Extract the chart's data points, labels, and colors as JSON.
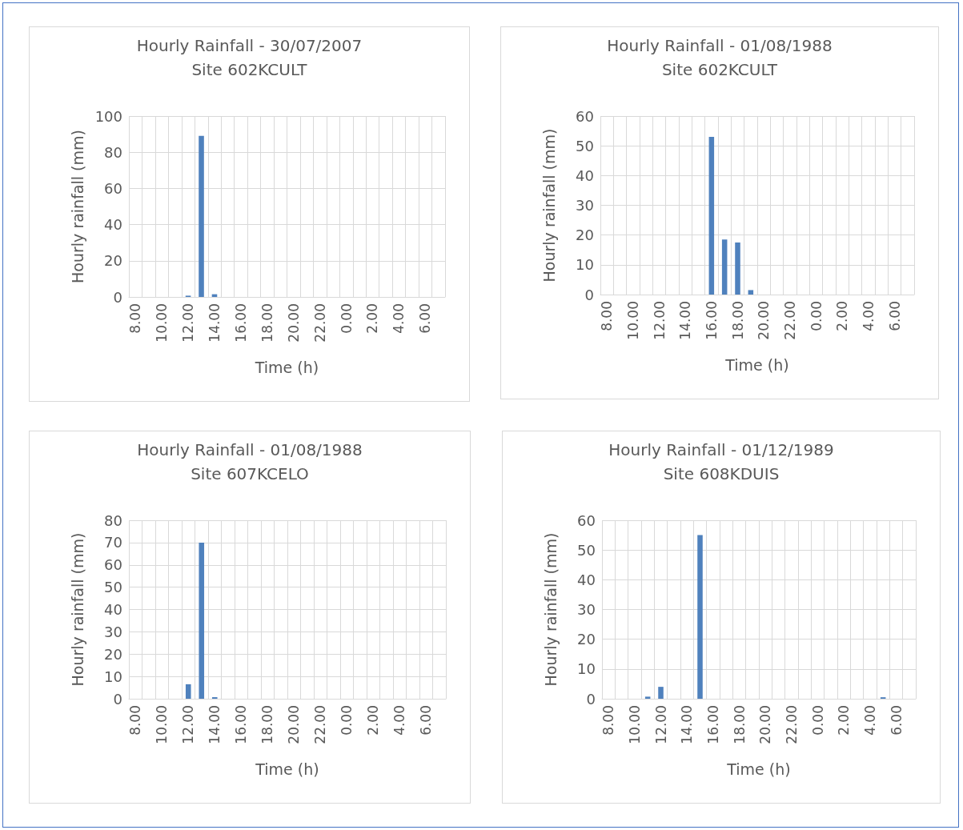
{
  "chart_data": [
    {
      "type": "bar",
      "title": "Hourly Rainfall - 30/07/2007",
      "subtitle": "Site 602KCULT",
      "xlabel": "Time (h)",
      "ylabel": "Hourly rainfall (mm)",
      "categories": [
        "8.00",
        null,
        "10.00",
        null,
        "12.00",
        null,
        "14.00",
        null,
        "16.00",
        null,
        "18.00",
        null,
        "20.00",
        null,
        "22.00",
        null,
        "0.00",
        null,
        "2.00",
        null,
        "4.00",
        null,
        "6.00",
        null
      ],
      "values": [
        0,
        0,
        0,
        0,
        0.7,
        89,
        1.5,
        0,
        0,
        0,
        0,
        0,
        0,
        0,
        0,
        0,
        0,
        0,
        0,
        0,
        0,
        0,
        0,
        0
      ],
      "color": "#4f81bd",
      "ylim": [
        0,
        100
      ],
      "yticks": [
        0,
        20,
        40,
        60,
        80,
        100
      ],
      "grid": true
    },
    {
      "type": "bar",
      "title": "Hourly Rainfall - 01/08/1988",
      "subtitle": "Site 602KCULT",
      "xlabel": "Time (h)",
      "ylabel": "Hourly rainfall (mm)",
      "categories": [
        "8.00",
        null,
        "10.00",
        null,
        "12.00",
        null,
        "14.00",
        null,
        "16.00",
        null,
        "18.00",
        null,
        "20.00",
        null,
        "22.00",
        null,
        "0.00",
        null,
        "2.00",
        null,
        "4.00",
        null,
        "6.00",
        null
      ],
      "values": [
        0,
        0,
        0,
        0,
        0,
        0,
        0,
        0,
        53,
        18.5,
        17.5,
        1.5,
        0,
        0,
        0,
        0,
        0,
        0,
        0,
        0,
        0,
        0,
        0,
        0
      ],
      "color": "#4f81bd",
      "ylim": [
        0,
        60
      ],
      "yticks": [
        0,
        10,
        20,
        30,
        40,
        50,
        60
      ],
      "grid": true
    },
    {
      "type": "bar",
      "title": "Hourly Rainfall - 01/08/1988",
      "subtitle": "Site 607KCELO",
      "xlabel": "Time (h)",
      "ylabel": "Hourly rainfall (mm)",
      "categories": [
        "8.00",
        null,
        "10.00",
        null,
        "12.00",
        null,
        "14.00",
        null,
        "16.00",
        null,
        "18.00",
        null,
        "20.00",
        null,
        "22.00",
        null,
        "0.00",
        null,
        "2.00",
        null,
        "4.00",
        null,
        "6.00",
        null
      ],
      "values": [
        0,
        0,
        0,
        0,
        6.5,
        70,
        0.7,
        0,
        0,
        0,
        0,
        0,
        0,
        0,
        0,
        0,
        0,
        0,
        0,
        0,
        0,
        0,
        0,
        0
      ],
      "color": "#4f81bd",
      "ylim": [
        0,
        80
      ],
      "yticks": [
        0,
        10,
        20,
        30,
        40,
        50,
        60,
        70,
        80
      ],
      "grid": true
    },
    {
      "type": "bar",
      "title": "Hourly Rainfall - 01/12/1989",
      "subtitle": "Site 608KDUIS",
      "xlabel": "Time (h)",
      "ylabel": "Hourly rainfall (mm)",
      "categories": [
        "8.00",
        null,
        "10.00",
        null,
        "12.00",
        null,
        "14.00",
        null,
        "16.00",
        null,
        "18.00",
        null,
        "20.00",
        null,
        "22.00",
        null,
        "0.00",
        null,
        "2.00",
        null,
        "4.00",
        null,
        "6.00",
        null
      ],
      "values": [
        0,
        0,
        0,
        0.7,
        4,
        0,
        0,
        55,
        0,
        0,
        0,
        0,
        0,
        0,
        0,
        0,
        0,
        0,
        0,
        0,
        0,
        0.5,
        0,
        0
      ],
      "color": "#4f81bd",
      "ylim": [
        0,
        60
      ],
      "yticks": [
        0,
        10,
        20,
        30,
        40,
        50,
        60
      ],
      "grid": true
    }
  ]
}
